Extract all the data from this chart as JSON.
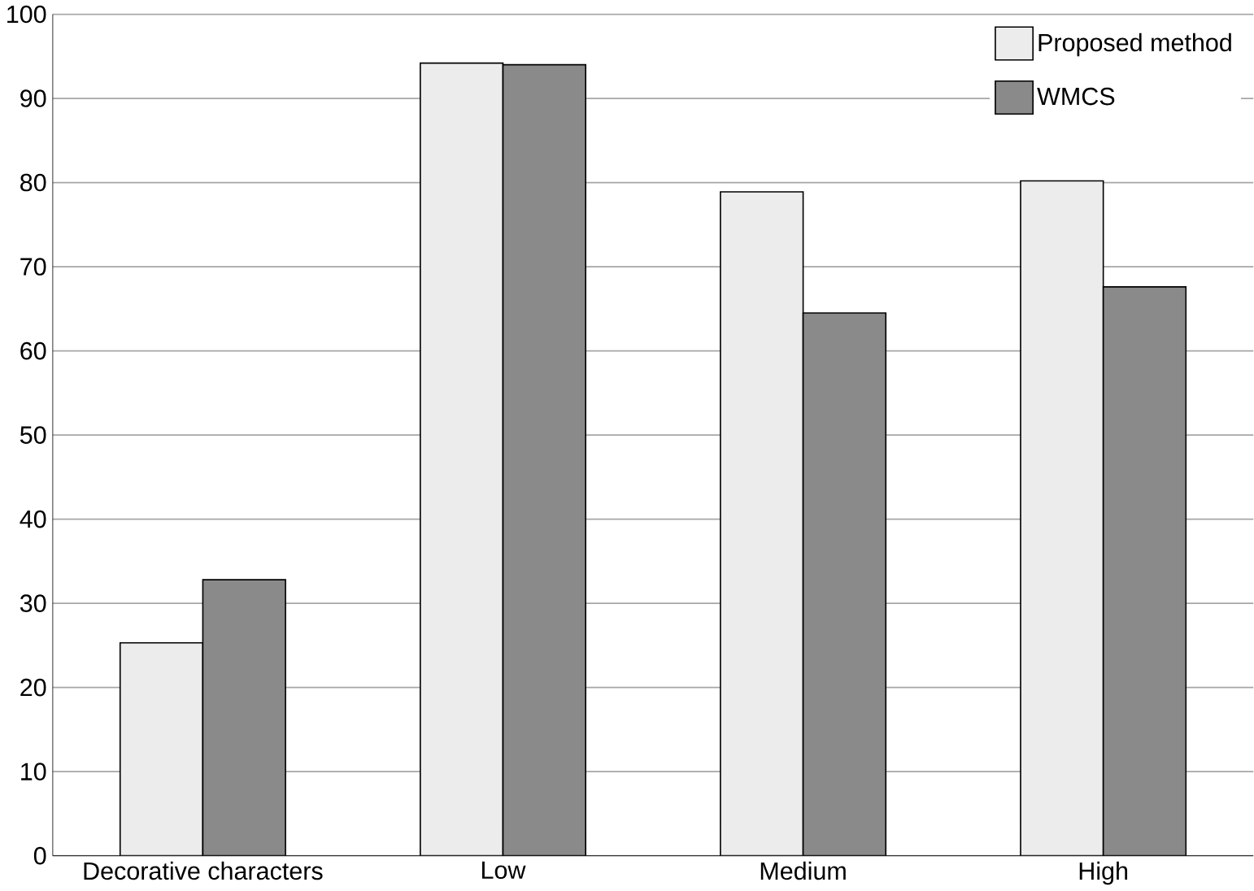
{
  "chart_data": {
    "type": "bar",
    "categories": [
      "Decorative characters",
      "Low",
      "Medium",
      "High"
    ],
    "series": [
      {
        "name": "Proposed method",
        "color": "#ececec",
        "values": [
          25.3,
          94.2,
          78.9,
          80.2
        ]
      },
      {
        "name": "WMCS",
        "color": "#8a8a8a",
        "values": [
          32.8,
          94.0,
          64.5,
          67.6
        ]
      }
    ],
    "ylim": [
      0,
      100
    ],
    "yticks": [
      0,
      10,
      20,
      30,
      40,
      50,
      60,
      70,
      80,
      90,
      100
    ],
    "grid": "y",
    "legend": "top right"
  }
}
